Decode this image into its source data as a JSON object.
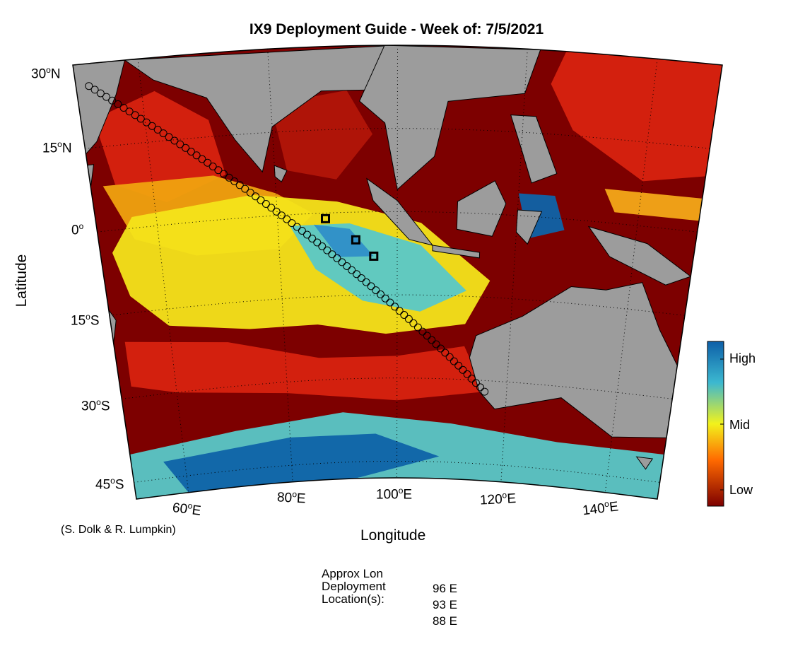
{
  "title": "IX9 Deployment Guide - Week of: 7/5/2021",
  "axes": {
    "xlabel": "Longitude",
    "ylabel": "Latitude",
    "lat_ticks": [
      {
        "deg": "30",
        "hemi": "N"
      },
      {
        "deg": "15",
        "hemi": "N"
      },
      {
        "deg": "0",
        "hemi": ""
      },
      {
        "deg": "15",
        "hemi": "S"
      },
      {
        "deg": "30",
        "hemi": "S"
      },
      {
        "deg": "45",
        "hemi": "S"
      }
    ],
    "lon_ticks": [
      {
        "deg": "60",
        "hemi": "E"
      },
      {
        "deg": "80",
        "hemi": "E"
      },
      {
        "deg": "100",
        "hemi": "E"
      },
      {
        "deg": "120",
        "hemi": "E"
      },
      {
        "deg": "140",
        "hemi": "E"
      }
    ]
  },
  "credit": "(S. Dolk & R. Lumpkin)",
  "colorbar": {
    "labels": [
      "High",
      "Mid",
      "Low"
    ],
    "colors": {
      "high": "#0d5fa8",
      "mid": "#f2f21c",
      "low": "#7d0000"
    }
  },
  "colors": {
    "land": "#9c9c9c",
    "ocean_low": "#7d0000",
    "ocean_highlow": "#d8220f",
    "ocean_mid": "#f4e41a",
    "ocean_cyan": "#58c8c8",
    "ocean_high": "#0f63a8",
    "track_marker": "#000000"
  },
  "deployment": {
    "header": [
      "Approx Lon",
      "Deployment",
      "Location(s):"
    ],
    "locations": [
      "96 E",
      "93 E",
      "88 E"
    ]
  },
  "track": {
    "start": {
      "lon": 52,
      "lat": 26
    },
    "end": {
      "lon": 116,
      "lat": -32
    },
    "deployment_points": [
      {
        "lon": 88,
        "lat": -1
      },
      {
        "lon": 93,
        "lat": -5
      },
      {
        "lon": 96,
        "lat": -8
      }
    ]
  }
}
